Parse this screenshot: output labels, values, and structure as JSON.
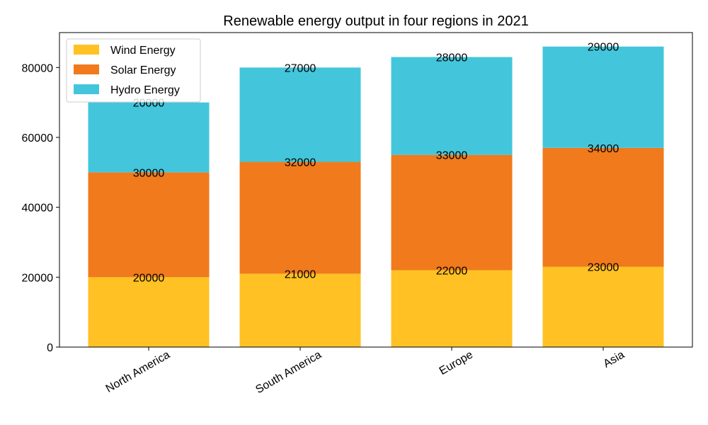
{
  "chart_data": {
    "type": "bar",
    "stacked": true,
    "title": "Renewable energy output in four regions in 2021",
    "xlabel": "",
    "ylabel": "",
    "categories": [
      "North America",
      "South America",
      "Europe",
      "Asia"
    ],
    "series": [
      {
        "name": "Wind Energy",
        "values": [
          20000,
          21000,
          22000,
          23000
        ],
        "color": "#FFC124"
      },
      {
        "name": "Solar Energy",
        "values": [
          30000,
          32000,
          33000,
          34000
        ],
        "color": "#F07A1C"
      },
      {
        "name": "Hydro Energy",
        "values": [
          20000,
          27000,
          28000,
          29000
        ],
        "color": "#43C6DB"
      }
    ],
    "ylim": [
      0,
      90000
    ],
    "yticks": [
      0,
      20000,
      40000,
      60000,
      80000
    ],
    "ytick_labels": [
      "0",
      "20000",
      "40000",
      "60000",
      "80000"
    ],
    "grid": false,
    "legend_position": "top-left"
  }
}
